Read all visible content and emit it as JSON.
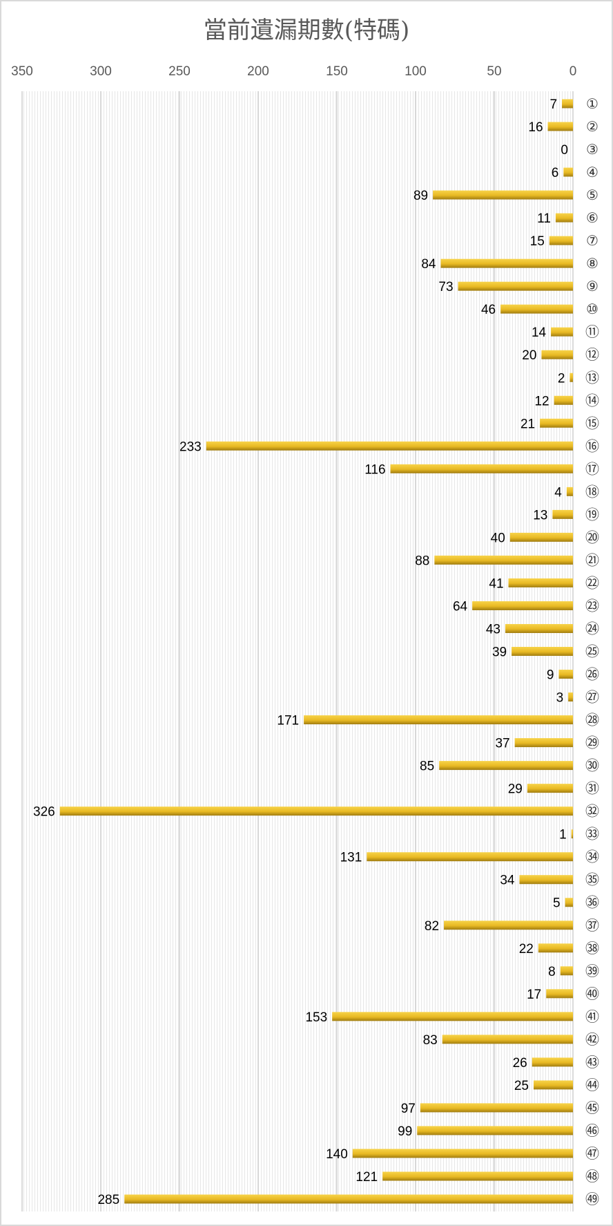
{
  "chart_data": {
    "type": "bar",
    "orientation": "horizontal",
    "x_reversed": true,
    "title": "當前遺漏期數(特碼)",
    "xlim": [
      0,
      350
    ],
    "xticks": [
      "350",
      "300",
      "250",
      "200",
      "150",
      "100",
      "50",
      "0"
    ],
    "tick_values": [
      350,
      300,
      250,
      200,
      150,
      100,
      50,
      0
    ],
    "grid": true,
    "bar_color": "#e8b923",
    "categories": [
      "①",
      "②",
      "③",
      "④",
      "⑤",
      "⑥",
      "⑦",
      "⑧",
      "⑨",
      "⑩",
      "⑪",
      "⑫",
      "⑬",
      "⑭",
      "⑮",
      "⑯",
      "⑰",
      "⑱",
      "⑲",
      "⑳",
      "㉑",
      "㉒",
      "㉓",
      "㉔",
      "㉕",
      "㉖",
      "㉗",
      "㉘",
      "㉙",
      "㉚",
      "㉛",
      "㉜",
      "㉝",
      "㉞",
      "㉟",
      "㊱",
      "㊲",
      "㊳",
      "㊴",
      "㊵",
      "㊶",
      "㊷",
      "㊸",
      "㊹",
      "㊺",
      "㊻",
      "㊼",
      "㊽",
      "㊾"
    ],
    "values": [
      7,
      16,
      0,
      6,
      89,
      11,
      15,
      84,
      73,
      46,
      14,
      20,
      2,
      12,
      21,
      233,
      116,
      4,
      13,
      40,
      88,
      41,
      64,
      43,
      39,
      9,
      3,
      171,
      37,
      85,
      29,
      326,
      1,
      131,
      34,
      5,
      82,
      22,
      8,
      17,
      153,
      83,
      26,
      25,
      97,
      99,
      140,
      121,
      285
    ]
  }
}
